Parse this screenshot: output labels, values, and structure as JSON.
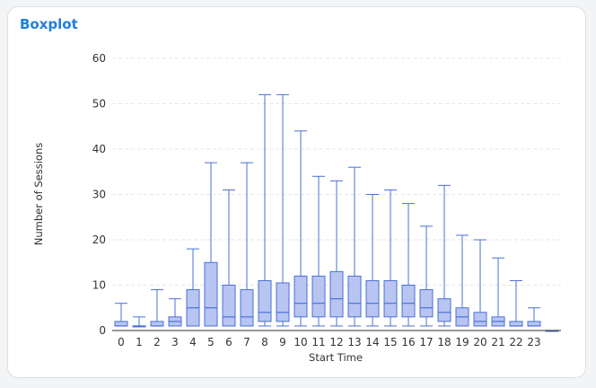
{
  "card": {
    "title": "Boxplot"
  },
  "chart_data": {
    "type": "boxplot",
    "title": "Boxplot",
    "xlabel": "Start Time",
    "ylabel": "Number of Sessions",
    "ylim": [
      0,
      60
    ],
    "yticks": [
      0,
      10,
      20,
      30,
      40,
      50,
      60
    ],
    "grid": true,
    "legend": "none",
    "colors": {
      "box_fill": "#b8c5f2",
      "box_stroke": "#4a70d6",
      "grid": "#e6e6e6",
      "axis": "#333333"
    },
    "categories": [
      "0",
      "1",
      "2",
      "3",
      "4",
      "5",
      "6",
      "7",
      "8",
      "9",
      "10",
      "11",
      "12",
      "13",
      "14",
      "15",
      "16",
      "17",
      "18",
      "19",
      "20",
      "21",
      "22",
      "23",
      ""
    ],
    "boxes": [
      {
        "min": 1,
        "q1": 1,
        "median": 1,
        "q3": 2,
        "max": 6
      },
      {
        "min": 1,
        "q1": 1,
        "median": 1,
        "q3": 1,
        "max": 3
      },
      {
        "min": 1,
        "q1": 1,
        "median": 1,
        "q3": 2,
        "max": 9
      },
      {
        "min": 1,
        "q1": 1,
        "median": 2,
        "q3": 3,
        "max": 7
      },
      {
        "min": 1,
        "q1": 1,
        "median": 5,
        "q3": 9,
        "max": 18
      },
      {
        "min": 1,
        "q1": 1,
        "median": 5,
        "q3": 15,
        "max": 37
      },
      {
        "min": 1,
        "q1": 1,
        "median": 3,
        "q3": 10,
        "max": 31
      },
      {
        "min": 1,
        "q1": 1,
        "median": 3,
        "q3": 9,
        "max": 37
      },
      {
        "min": 1,
        "q1": 2,
        "median": 4,
        "q3": 11,
        "max": 52
      },
      {
        "min": 1,
        "q1": 2,
        "median": 4,
        "q3": 10.5,
        "max": 52
      },
      {
        "min": 1,
        "q1": 3,
        "median": 6,
        "q3": 12,
        "max": 44
      },
      {
        "min": 1,
        "q1": 3,
        "median": 6,
        "q3": 12,
        "max": 34
      },
      {
        "min": 1,
        "q1": 3,
        "median": 7,
        "q3": 13,
        "max": 33
      },
      {
        "min": 1,
        "q1": 3,
        "median": 6,
        "q3": 12,
        "max": 36
      },
      {
        "min": 1,
        "q1": 3,
        "median": 6,
        "q3": 11,
        "max": 30
      },
      {
        "min": 1,
        "q1": 3,
        "median": 6,
        "q3": 11,
        "max": 31
      },
      {
        "min": 1,
        "q1": 3,
        "median": 6,
        "q3": 10,
        "max": 28
      },
      {
        "min": 1,
        "q1": 3,
        "median": 5,
        "q3": 9,
        "max": 23
      },
      {
        "min": 1,
        "q1": 2,
        "median": 4,
        "q3": 7,
        "max": 32
      },
      {
        "min": 1,
        "q1": 1,
        "median": 3,
        "q3": 5,
        "max": 21
      },
      {
        "min": 1,
        "q1": 1,
        "median": 2,
        "q3": 4,
        "max": 20
      },
      {
        "min": 1,
        "q1": 1,
        "median": 2,
        "q3": 3,
        "max": 16
      },
      {
        "min": 1,
        "q1": 1,
        "median": 1,
        "q3": 2,
        "max": 11
      },
      {
        "min": 1,
        "q1": 1,
        "median": 1,
        "q3": 2,
        "max": 5
      },
      {
        "min": 0,
        "q1": 0,
        "median": 0,
        "q3": 0,
        "max": 0
      }
    ]
  }
}
